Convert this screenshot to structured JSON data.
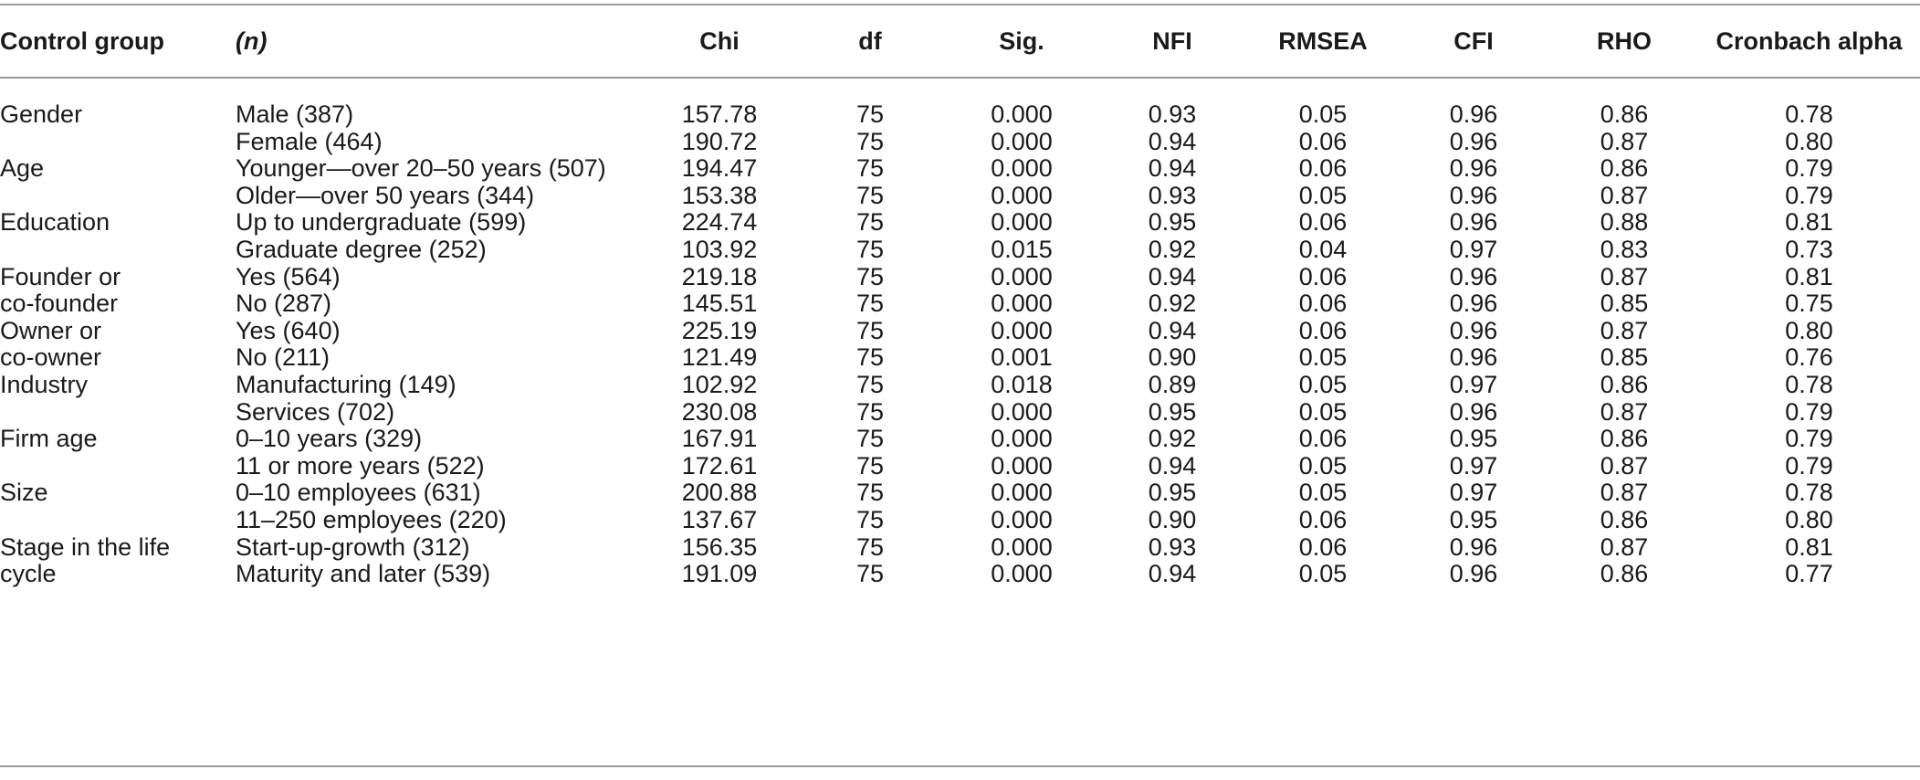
{
  "headers": {
    "group": "Control group",
    "n": "(n)",
    "chi": "Chi",
    "df": "df",
    "sig": "Sig.",
    "nfi": "NFI",
    "rmsea": "RMSEA",
    "cfi": "CFI",
    "rho": "RHO",
    "alpha": "Cronbach alpha"
  },
  "rows": [
    {
      "group": "Gender",
      "n": "Male (387)",
      "chi": "157.78",
      "df": "75",
      "sig": "0.000",
      "nfi": "0.93",
      "rmsea": "0.05",
      "cfi": "0.96",
      "rho": "0.86",
      "alpha": "0.78"
    },
    {
      "group": "",
      "n": "Female (464)",
      "chi": "190.72",
      "df": "75",
      "sig": "0.000",
      "nfi": "0.94",
      "rmsea": "0.06",
      "cfi": "0.96",
      "rho": "0.87",
      "alpha": "0.80"
    },
    {
      "group": "Age",
      "n": "Younger—over 20–50 years (507)",
      "chi": "194.47",
      "df": "75",
      "sig": "0.000",
      "nfi": "0.94",
      "rmsea": "0.06",
      "cfi": "0.96",
      "rho": "0.86",
      "alpha": "0.79"
    },
    {
      "group": "",
      "n": "Older—over 50 years (344)",
      "chi": "153.38",
      "df": "75",
      "sig": "0.000",
      "nfi": "0.93",
      "rmsea": "0.05",
      "cfi": "0.96",
      "rho": "0.87",
      "alpha": "0.79"
    },
    {
      "group": "Education",
      "n": "Up to undergraduate (599)",
      "chi": "224.74",
      "df": "75",
      "sig": "0.000",
      "nfi": "0.95",
      "rmsea": "0.06",
      "cfi": "0.96",
      "rho": "0.88",
      "alpha": "0.81"
    },
    {
      "group": "",
      "n": "Graduate degree (252)",
      "chi": "103.92",
      "df": "75",
      "sig": "0.015",
      "nfi": "0.92",
      "rmsea": "0.04",
      "cfi": "0.97",
      "rho": "0.83",
      "alpha": "0.73"
    },
    {
      "group": "Founder or",
      "n": "Yes (564)",
      "chi": "219.18",
      "df": "75",
      "sig": "0.000",
      "nfi": "0.94",
      "rmsea": "0.06",
      "cfi": "0.96",
      "rho": "0.87",
      "alpha": "0.81"
    },
    {
      "group": "co-founder",
      "n": "No (287)",
      "chi": "145.51",
      "df": "75",
      "sig": "0.000",
      "nfi": "0.92",
      "rmsea": "0.06",
      "cfi": "0.96",
      "rho": "0.85",
      "alpha": "0.75"
    },
    {
      "group": "Owner or",
      "n": "Yes (640)",
      "chi": "225.19",
      "df": "75",
      "sig": "0.000",
      "nfi": "0.94",
      "rmsea": "0.06",
      "cfi": "0.96",
      "rho": "0.87",
      "alpha": "0.80"
    },
    {
      "group": "co-owner",
      "n": "No (211)",
      "chi": "121.49",
      "df": "75",
      "sig": "0.001",
      "nfi": "0.90",
      "rmsea": "0.05",
      "cfi": "0.96",
      "rho": "0.85",
      "alpha": "0.76"
    },
    {
      "group": "Industry",
      "n": "Manufacturing (149)",
      "chi": "102.92",
      "df": "75",
      "sig": "0.018",
      "nfi": "0.89",
      "rmsea": "0.05",
      "cfi": "0.97",
      "rho": "0.86",
      "alpha": "0.78"
    },
    {
      "group": "",
      "n": "Services (702)",
      "chi": "230.08",
      "df": "75",
      "sig": "0.000",
      "nfi": "0.95",
      "rmsea": "0.05",
      "cfi": "0.96",
      "rho": "0.87",
      "alpha": "0.79"
    },
    {
      "group": "Firm age",
      "n": "0–10 years (329)",
      "chi": "167.91",
      "df": "75",
      "sig": "0.000",
      "nfi": "0.92",
      "rmsea": "0.06",
      "cfi": "0.95",
      "rho": "0.86",
      "alpha": "0.79"
    },
    {
      "group": "",
      "n": "11 or more years (522)",
      "chi": "172.61",
      "df": "75",
      "sig": "0.000",
      "nfi": "0.94",
      "rmsea": "0.05",
      "cfi": "0.97",
      "rho": "0.87",
      "alpha": "0.79"
    },
    {
      "group": "Size",
      "n": "0–10 employees (631)",
      "chi": "200.88",
      "df": "75",
      "sig": "0.000",
      "nfi": "0.95",
      "rmsea": "0.05",
      "cfi": "0.97",
      "rho": "0.87",
      "alpha": "0.78"
    },
    {
      "group": "",
      "n": "11–250 employees (220)",
      "chi": "137.67",
      "df": "75",
      "sig": "0.000",
      "nfi": "0.90",
      "rmsea": "0.06",
      "cfi": "0.95",
      "rho": "0.86",
      "alpha": "0.80"
    },
    {
      "group": "Stage in the life",
      "n": "Start-up-growth (312)",
      "chi": "156.35",
      "df": "75",
      "sig": "0.000",
      "nfi": "0.93",
      "rmsea": "0.06",
      "cfi": "0.96",
      "rho": "0.87",
      "alpha": "0.81"
    },
    {
      "group": "cycle",
      "n": "Maturity and later (539)",
      "chi": "191.09",
      "df": "75",
      "sig": "0.000",
      "nfi": "0.94",
      "rmsea": "0.05",
      "cfi": "0.96",
      "rho": "0.86",
      "alpha": "0.77"
    }
  ]
}
